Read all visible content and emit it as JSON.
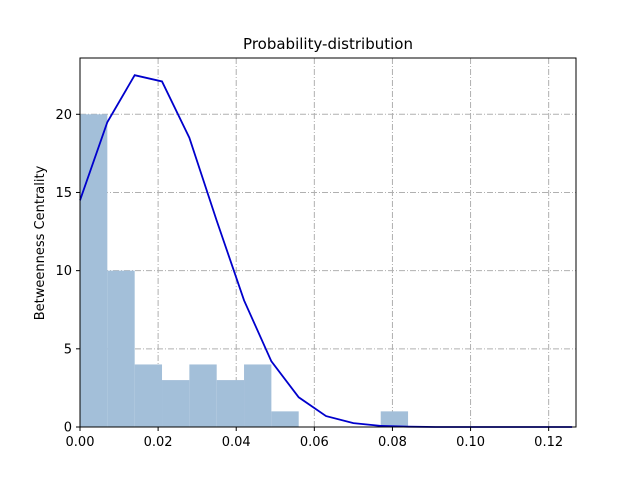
{
  "chart_data": {
    "type": "bar",
    "title": "Probability-distribution",
    "xlabel": "",
    "ylabel": "Betweenness Centrality",
    "xlim": [
      0.0,
      0.127
    ],
    "ylim": [
      0,
      23.6
    ],
    "xticks": [
      0.0,
      0.02,
      0.04,
      0.06,
      0.08,
      0.1,
      0.12
    ],
    "xtick_labels": [
      "0.00",
      "0.02",
      "0.04",
      "0.06",
      "0.08",
      "0.10",
      "0.12"
    ],
    "yticks": [
      0,
      5,
      10,
      15,
      20
    ],
    "ytick_labels": [
      "0",
      "5",
      "10",
      "15",
      "20"
    ],
    "grid": true,
    "series": [
      {
        "kind": "histogram",
        "color": "#a3bfd9",
        "bins": [
          {
            "x0": 0.0,
            "x1": 0.007,
            "value": 20
          },
          {
            "x0": 0.007,
            "x1": 0.014,
            "value": 10
          },
          {
            "x0": 0.014,
            "x1": 0.021,
            "value": 4
          },
          {
            "x0": 0.021,
            "x1": 0.028,
            "value": 3
          },
          {
            "x0": 0.028,
            "x1": 0.035,
            "value": 4
          },
          {
            "x0": 0.035,
            "x1": 0.042,
            "value": 3
          },
          {
            "x0": 0.042,
            "x1": 0.049,
            "value": 4
          },
          {
            "x0": 0.049,
            "x1": 0.056,
            "value": 1
          },
          {
            "x0": 0.077,
            "x1": 0.084,
            "value": 1
          }
        ]
      },
      {
        "kind": "line",
        "color": "#0000cc",
        "points": [
          [
            0.0,
            14.5
          ],
          [
            0.007,
            19.5
          ],
          [
            0.014,
            22.5
          ],
          [
            0.021,
            22.1
          ],
          [
            0.028,
            18.5
          ],
          [
            0.035,
            13.2
          ],
          [
            0.042,
            8.1
          ],
          [
            0.049,
            4.2
          ],
          [
            0.056,
            1.9
          ],
          [
            0.063,
            0.7
          ],
          [
            0.07,
            0.25
          ],
          [
            0.077,
            0.07
          ],
          [
            0.084,
            0.02
          ],
          [
            0.091,
            0.0
          ],
          [
            0.126,
            0.0
          ]
        ]
      }
    ]
  }
}
